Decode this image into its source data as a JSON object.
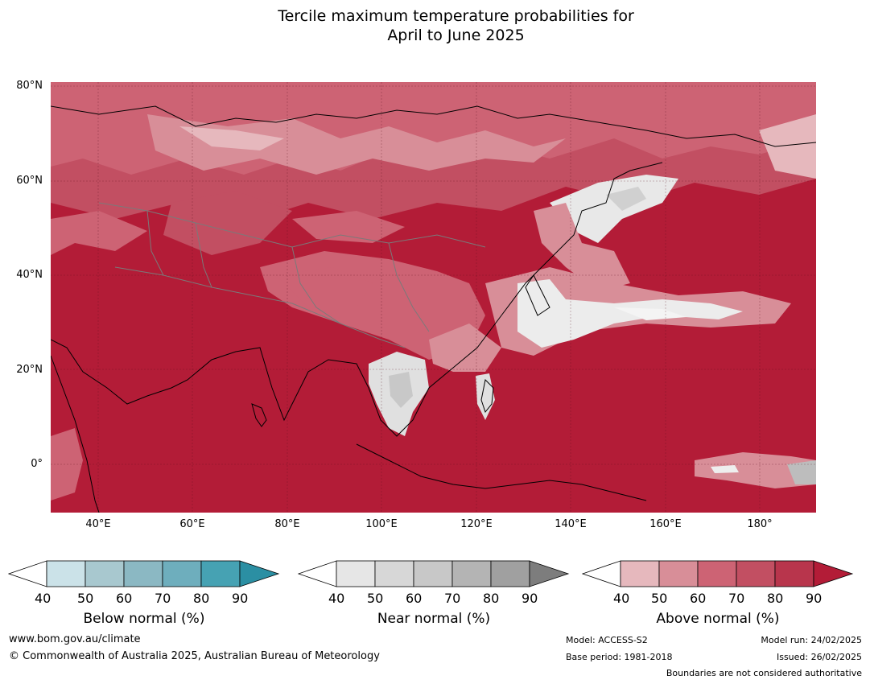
{
  "title": {
    "line1": "Tercile maximum temperature probabilities for",
    "line2": "April to June 2025"
  },
  "map": {
    "lat_ticks": [
      "80°N",
      "60°N",
      "40°N",
      "20°N",
      "0°"
    ],
    "lon_ticks": [
      "40°E",
      "60°E",
      "80°E",
      "100°E",
      "120°E",
      "140°E",
      "160°E",
      "180°"
    ],
    "colors": {
      "dominant_above_90": "#b31c37",
      "above_80": "#c03a52",
      "above_70": "#cd6374",
      "above_60": "#d88e98",
      "above_50": "#e6b8bd",
      "near_normal_light": "#e8e8e8",
      "near_normal_mid": "#c8c8c8",
      "coastline": "#000000",
      "borders": "#7a7a7a"
    }
  },
  "legends": [
    {
      "label": "Below normal (%)",
      "ticks": [
        "40",
        "50",
        "60",
        "70",
        "80",
        "90"
      ],
      "colors": [
        "#ffffff",
        "#cbe2e8",
        "#a8c8cf",
        "#8bb8c3",
        "#6eaebd",
        "#46a2b3",
        "#2b8fa3"
      ]
    },
    {
      "label": "Near normal (%)",
      "ticks": [
        "40",
        "50",
        "60",
        "70",
        "80",
        "90"
      ],
      "colors": [
        "#ffffff",
        "#e6e6e6",
        "#d7d7d7",
        "#c8c8c8",
        "#b4b4b4",
        "#a0a0a0",
        "#7d7d7d"
      ]
    },
    {
      "label": "Above normal (%)",
      "ticks": [
        "40",
        "50",
        "60",
        "70",
        "80",
        "90"
      ],
      "colors": [
        "#ffffff",
        "#e6b8bd",
        "#d88e98",
        "#cd6374",
        "#c24f62",
        "#b8354c",
        "#b31c37"
      ]
    }
  ],
  "footer": {
    "website": "www.bom.gov.au/climate",
    "copyright": "© Commonwealth of Australia 2025, Australian Bureau of Meteorology",
    "model": "Model: ACCESS-S2",
    "base_period": "Base period: 1981-2018",
    "model_run": "Model run: 24/02/2025",
    "issued": "Issued: 26/02/2025",
    "disclaimer": "Boundaries are not considered authoritative"
  }
}
